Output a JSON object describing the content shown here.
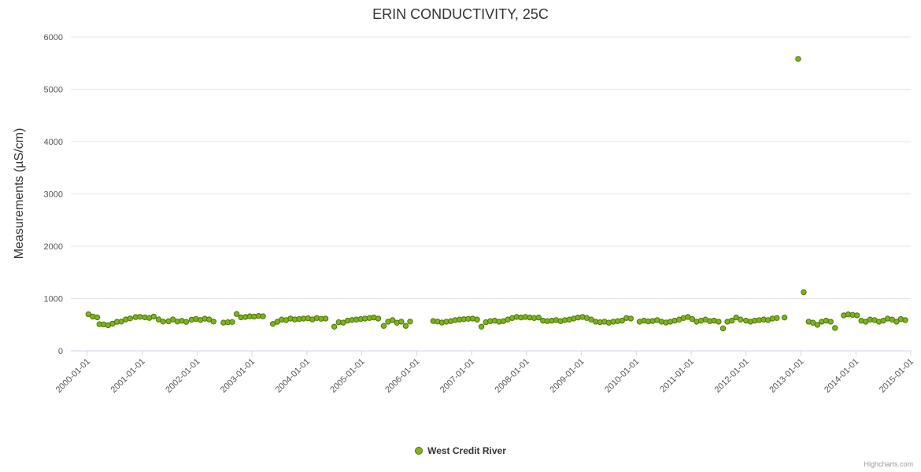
{
  "chart": {
    "title": "ERIN CONDUCTIVITY, 25C",
    "credits": "Highcharts.com"
  },
  "legend": {
    "label": "West Credit River"
  },
  "chart_data": {
    "type": "scatter",
    "title": "ERIN CONDUCTIVITY, 25C",
    "xlabel": "",
    "ylabel": "Measurements (µS/cm)",
    "ylim": [
      0,
      6000
    ],
    "xlim": [
      1999.7,
      2015.0
    ],
    "grid": true,
    "legend_position": "bottom",
    "y_ticks": [
      0,
      1000,
      2000,
      3000,
      4000,
      5000,
      6000
    ],
    "x_tick_values": [
      2000,
      2001,
      2002,
      2003,
      2004,
      2005,
      2006,
      2007,
      2008,
      2009,
      2010,
      2011,
      2012,
      2013,
      2014,
      2015
    ],
    "x_tick_labels": [
      "2000-01-01",
      "2001-01-01",
      "2002-01-01",
      "2003-01-01",
      "2004-01-01",
      "2005-01-01",
      "2006-01-01",
      "2007-01-01",
      "2008-01-01",
      "2009-01-01",
      "2010-01-01",
      "2011-01-01",
      "2012-01-01",
      "2013-01-01",
      "2014-01-01",
      "2015-01-01"
    ],
    "colors": {
      "grid": "#e6e6e6",
      "axis_line": "#ccd6eb",
      "tick_label": "#555555"
    },
    "series": [
      {
        "name": "West Credit River",
        "color": "#7db320",
        "border_color": "#4e7505",
        "points": [
          [
            2000.02,
            700
          ],
          [
            2000.1,
            655
          ],
          [
            2000.18,
            640
          ],
          [
            2000.22,
            510
          ],
          [
            2000.3,
            505
          ],
          [
            2000.38,
            490
          ],
          [
            2000.46,
            520
          ],
          [
            2000.54,
            555
          ],
          [
            2000.62,
            560
          ],
          [
            2000.7,
            600
          ],
          [
            2000.78,
            620
          ],
          [
            2000.88,
            645
          ],
          [
            2000.96,
            650
          ],
          [
            2001.05,
            640
          ],
          [
            2001.13,
            630
          ],
          [
            2001.21,
            655
          ],
          [
            2001.3,
            600
          ],
          [
            2001.38,
            560
          ],
          [
            2001.48,
            565
          ],
          [
            2001.56,
            600
          ],
          [
            2001.64,
            560
          ],
          [
            2001.72,
            575
          ],
          [
            2001.8,
            555
          ],
          [
            2001.9,
            595
          ],
          [
            2001.98,
            610
          ],
          [
            2002.06,
            590
          ],
          [
            2002.14,
            615
          ],
          [
            2002.22,
            600
          ],
          [
            2002.3,
            560
          ],
          [
            2002.48,
            540
          ],
          [
            2002.56,
            548
          ],
          [
            2002.64,
            552
          ],
          [
            2002.72,
            705
          ],
          [
            2002.8,
            640
          ],
          [
            2002.88,
            648
          ],
          [
            2002.96,
            660
          ],
          [
            2003.04,
            655
          ],
          [
            2003.12,
            668
          ],
          [
            2003.2,
            660
          ],
          [
            2003.38,
            515
          ],
          [
            2003.46,
            555
          ],
          [
            2003.54,
            598
          ],
          [
            2003.62,
            588
          ],
          [
            2003.7,
            618
          ],
          [
            2003.78,
            600
          ],
          [
            2003.86,
            608
          ],
          [
            2003.94,
            618
          ],
          [
            2004.02,
            622
          ],
          [
            2004.1,
            600
          ],
          [
            2004.18,
            628
          ],
          [
            2004.26,
            612
          ],
          [
            2004.34,
            618
          ],
          [
            2004.5,
            462
          ],
          [
            2004.58,
            548
          ],
          [
            2004.66,
            540
          ],
          [
            2004.74,
            578
          ],
          [
            2004.82,
            590
          ],
          [
            2004.9,
            598
          ],
          [
            2004.98,
            608
          ],
          [
            2005.06,
            618
          ],
          [
            2005.14,
            628
          ],
          [
            2005.22,
            638
          ],
          [
            2005.3,
            618
          ],
          [
            2005.4,
            478
          ],
          [
            2005.48,
            558
          ],
          [
            2005.56,
            588
          ],
          [
            2005.64,
            538
          ],
          [
            2005.72,
            558
          ],
          [
            2005.8,
            478
          ],
          [
            2005.88,
            560
          ],
          [
            2006.3,
            570
          ],
          [
            2006.38,
            560
          ],
          [
            2006.46,
            542
          ],
          [
            2006.54,
            558
          ],
          [
            2006.62,
            568
          ],
          [
            2006.7,
            588
          ],
          [
            2006.78,
            598
          ],
          [
            2006.86,
            605
          ],
          [
            2006.94,
            612
          ],
          [
            2007.02,
            618
          ],
          [
            2007.1,
            598
          ],
          [
            2007.18,
            462
          ],
          [
            2007.26,
            548
          ],
          [
            2007.34,
            568
          ],
          [
            2007.42,
            578
          ],
          [
            2007.5,
            558
          ],
          [
            2007.58,
            568
          ],
          [
            2007.66,
            598
          ],
          [
            2007.74,
            628
          ],
          [
            2007.82,
            648
          ],
          [
            2007.9,
            638
          ],
          [
            2007.98,
            648
          ],
          [
            2008.06,
            638
          ],
          [
            2008.14,
            628
          ],
          [
            2008.22,
            638
          ],
          [
            2008.3,
            578
          ],
          [
            2008.38,
            568
          ],
          [
            2008.46,
            578
          ],
          [
            2008.54,
            588
          ],
          [
            2008.62,
            568
          ],
          [
            2008.7,
            588
          ],
          [
            2008.78,
            598
          ],
          [
            2008.86,
            618
          ],
          [
            2008.94,
            638
          ],
          [
            2009.02,
            648
          ],
          [
            2009.1,
            628
          ],
          [
            2009.18,
            598
          ],
          [
            2009.26,
            558
          ],
          [
            2009.34,
            548
          ],
          [
            2009.42,
            558
          ],
          [
            2009.5,
            538
          ],
          [
            2009.58,
            558
          ],
          [
            2009.66,
            568
          ],
          [
            2009.74,
            578
          ],
          [
            2009.82,
            628
          ],
          [
            2009.9,
            618
          ],
          [
            2010.06,
            558
          ],
          [
            2010.14,
            578
          ],
          [
            2010.22,
            562
          ],
          [
            2010.3,
            572
          ],
          [
            2010.38,
            588
          ],
          [
            2010.46,
            558
          ],
          [
            2010.54,
            542
          ],
          [
            2010.62,
            558
          ],
          [
            2010.7,
            578
          ],
          [
            2010.78,
            598
          ],
          [
            2010.86,
            628
          ],
          [
            2010.94,
            648
          ],
          [
            2011.02,
            608
          ],
          [
            2011.1,
            558
          ],
          [
            2011.18,
            578
          ],
          [
            2011.26,
            598
          ],
          [
            2011.34,
            568
          ],
          [
            2011.42,
            578
          ],
          [
            2011.5,
            558
          ],
          [
            2011.58,
            428
          ],
          [
            2011.66,
            558
          ],
          [
            2011.74,
            578
          ],
          [
            2011.82,
            638
          ],
          [
            2011.9,
            598
          ],
          [
            2012.0,
            578
          ],
          [
            2012.08,
            558
          ],
          [
            2012.16,
            578
          ],
          [
            2012.24,
            588
          ],
          [
            2012.32,
            598
          ],
          [
            2012.4,
            588
          ],
          [
            2012.48,
            618
          ],
          [
            2012.56,
            628
          ],
          [
            2012.7,
            638
          ],
          [
            2012.95,
            5580
          ],
          [
            2013.05,
            1120
          ],
          [
            2013.14,
            558
          ],
          [
            2013.22,
            538
          ],
          [
            2013.3,
            498
          ],
          [
            2013.38,
            558
          ],
          [
            2013.46,
            578
          ],
          [
            2013.54,
            558
          ],
          [
            2013.62,
            438
          ],
          [
            2013.78,
            678
          ],
          [
            2013.86,
            698
          ],
          [
            2013.94,
            688
          ],
          [
            2014.02,
            678
          ],
          [
            2014.1,
            578
          ],
          [
            2014.18,
            558
          ],
          [
            2014.26,
            598
          ],
          [
            2014.34,
            588
          ],
          [
            2014.42,
            558
          ],
          [
            2014.5,
            578
          ],
          [
            2014.58,
            618
          ],
          [
            2014.66,
            598
          ],
          [
            2014.74,
            558
          ],
          [
            2014.82,
            608
          ],
          [
            2014.9,
            588
          ]
        ]
      }
    ]
  }
}
